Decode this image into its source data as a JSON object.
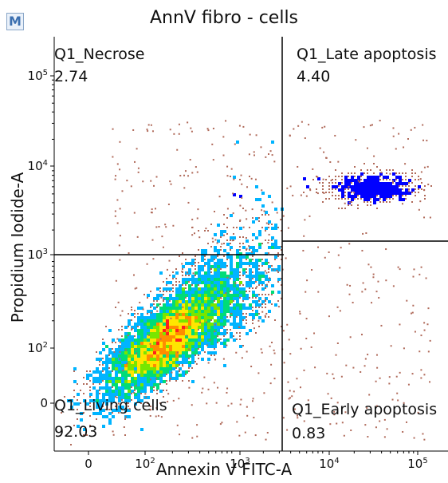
{
  "panel_badge": "M",
  "chart_data": {
    "type": "scatter",
    "subtype": "flow-cytometry density pseudocolor plot with quadrant gates",
    "title": "AnnV fibro - cells",
    "xlabel": "Annexin V FITC-A",
    "ylabel": "Propidium Iodide-A",
    "xscale": "biexponential (logicle)",
    "yscale": "biexponential (logicle)",
    "x_ticks": [
      {
        "base": "0",
        "exp": ""
      },
      {
        "base": "10",
        "exp": "2"
      },
      {
        "base": "10",
        "exp": "3"
      },
      {
        "base": "10",
        "exp": "4"
      },
      {
        "base": "10",
        "exp": "5"
      }
    ],
    "y_ticks": [
      {
        "base": "0",
        "exp": ""
      },
      {
        "base": "10",
        "exp": "2"
      },
      {
        "base": "10",
        "exp": "3"
      },
      {
        "base": "10",
        "exp": "4"
      },
      {
        "base": "10",
        "exp": "5"
      }
    ],
    "quadrants": [
      {
        "name": "Q1_Necrose",
        "percent": "2.74",
        "position": "top-left"
      },
      {
        "name": "Q1_Late apoptosis",
        "percent": "4.40",
        "position": "top-right"
      },
      {
        "name": "Q1_Living cells",
        "percent": "92.03",
        "position": "bottom-left"
      },
      {
        "name": "Q1_Early apoptosis",
        "percent": "0.83",
        "position": "bottom-right"
      }
    ],
    "gate_x": 3000,
    "gate_y_left": 1000,
    "gate_y_right": 1300,
    "populations": [
      {
        "name": "Living cells",
        "center_x": 200,
        "center_y": 150
      },
      {
        "name": "Late apoptosis",
        "center_x": 30000,
        "center_y": 6000
      }
    ],
    "color_scale": [
      "#0000ff",
      "#00b4ff",
      "#00dc78",
      "#78e600",
      "#ffe600",
      "#ff8c00",
      "#ff1e1e"
    ],
    "outlier_color": "#b06a5a"
  }
}
